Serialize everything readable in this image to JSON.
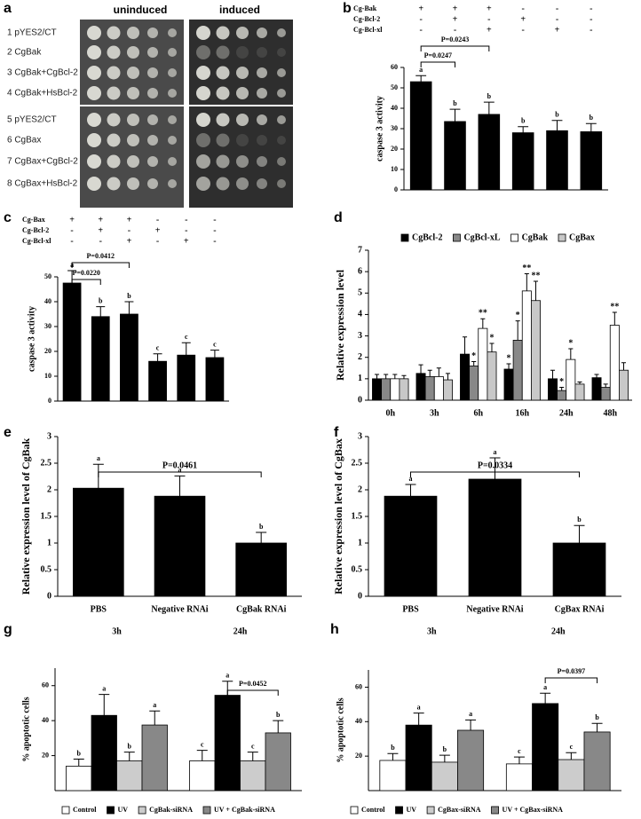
{
  "panel_a": {
    "panel_label": "a",
    "columns": [
      "uninduced",
      "induced"
    ],
    "rows": [
      "1 pYES2/CT",
      "2 CgBak",
      "3 CgBak+CgBcl-2",
      "4 CgBak+HsBcl-2",
      "5 pYES2/CT",
      "6 CgBax",
      "7 CgBax+CgBcl-2",
      "8 CgBax+HsBcl-2"
    ]
  },
  "chart_data": [
    {
      "type": "bar",
      "panel_label": "b",
      "ylabel": "caspase 3 activity",
      "categories": [
        null,
        null,
        null,
        null,
        null,
        null
      ],
      "conditions": [
        {
          "name": "Cg-Bak",
          "signs": [
            "+",
            "+",
            "+",
            "-",
            "-",
            "-"
          ]
        },
        {
          "name": "Cg-Bcl-2",
          "signs": [
            "-",
            "+",
            "-",
            "+",
            "-",
            "-"
          ]
        },
        {
          "name": "Cg-Bcl-xl",
          "signs": [
            "-",
            "-",
            "+",
            "-",
            "+",
            "-"
          ]
        }
      ],
      "series": [
        {
          "color": "#000000",
          "values": [
            53,
            33.5,
            37,
            28,
            29,
            28.5
          ],
          "errors": [
            3,
            6,
            6,
            3,
            5,
            4
          ],
          "letters": [
            "a",
            "b",
            "b",
            "b",
            "b",
            "b"
          ]
        }
      ],
      "brackets": [
        {
          "from": [
            0,
            0
          ],
          "to": [
            1,
            0
          ],
          "label": "P=0.0247"
        },
        {
          "from": [
            0,
            0
          ],
          "to": [
            2,
            0
          ],
          "label": "P=0.0243"
        }
      ],
      "ylim": [
        0,
        60
      ],
      "yticks": [
        0,
        10,
        20,
        30,
        40,
        50,
        60
      ]
    },
    {
      "type": "bar",
      "panel_label": "c",
      "ylabel": "caspase 3 activity",
      "categories": [
        null,
        null,
        null,
        null,
        null,
        null
      ],
      "conditions": [
        {
          "name": "Cg-Bax",
          "signs": [
            "+",
            "+",
            "+",
            "-",
            "-",
            "-"
          ]
        },
        {
          "name": "Cg-Bcl-2",
          "signs": [
            "-",
            "+",
            "-",
            "+",
            "-",
            "-"
          ]
        },
        {
          "name": "Cg-Bcl-xl",
          "signs": [
            "-",
            "-",
            "+",
            "-",
            "+",
            "-"
          ]
        }
      ],
      "series": [
        {
          "color": "#000000",
          "values": [
            47.5,
            34,
            35,
            16,
            18.5,
            17.5
          ],
          "errors": [
            5,
            4,
            5,
            3,
            5,
            3
          ],
          "letters": [
            "a",
            "b",
            "b",
            "c",
            "c",
            "c"
          ]
        }
      ],
      "brackets": [
        {
          "from": [
            0,
            0
          ],
          "to": [
            1,
            0
          ],
          "label": "P=0.0220"
        },
        {
          "from": [
            0,
            0
          ],
          "to": [
            2,
            0
          ],
          "label": "P=0.0412"
        }
      ],
      "ylim": [
        0,
        50
      ],
      "yticks": [
        0,
        10,
        20,
        30,
        40,
        50
      ]
    },
    {
      "type": "bar",
      "panel_label": "d",
      "ylabel": "Relative expression level",
      "categories": [
        "0h",
        "3h",
        "6h",
        "16h",
        "24h",
        "48h"
      ],
      "series": [
        {
          "name": "CgBcl-2",
          "color": "#000000",
          "values": [
            1,
            1.25,
            2.15,
            1.45,
            1.0,
            1.05
          ],
          "errors": [
            0.2,
            0.4,
            0.8,
            0.25,
            0.4,
            0.15
          ],
          "significance": [
            null,
            null,
            null,
            "*",
            null,
            null
          ]
        },
        {
          "name": "CgBcl-xL",
          "color": "#888888",
          "values": [
            1,
            1.1,
            1.6,
            2.8,
            0.45,
            0.6
          ],
          "errors": [
            0.2,
            0.3,
            0.2,
            0.9,
            0.15,
            0.15
          ],
          "significance": [
            null,
            null,
            "*",
            "*",
            "*",
            null
          ]
        },
        {
          "name": "CgBak",
          "color": "#ffffff",
          "values": [
            1,
            1.1,
            3.35,
            5.1,
            1.9,
            3.5
          ],
          "errors": [
            0.2,
            0.4,
            0.45,
            0.8,
            0.5,
            0.6
          ],
          "significance": [
            null,
            null,
            "**",
            "**",
            "*",
            "**"
          ]
        },
        {
          "name": "CgBax",
          "color": "#c8c8c8",
          "values": [
            1,
            0.95,
            2.25,
            4.65,
            0.75,
            1.4
          ],
          "errors": [
            0.15,
            0.3,
            0.4,
            0.9,
            0.1,
            0.35
          ],
          "significance": [
            null,
            null,
            "*",
            "**",
            null,
            null
          ]
        }
      ],
      "ylim": [
        0,
        7
      ],
      "yticks": [
        0,
        1,
        2,
        3,
        4,
        5,
        6,
        7
      ]
    },
    {
      "type": "bar",
      "panel_label": "e",
      "ylabel": "Relative expression level of CgBak",
      "categories": [
        "PBS",
        "Negative RNAi",
        "CgBak RNAi"
      ],
      "series": [
        {
          "color": "#000000",
          "values": [
            2.03,
            1.88,
            1.0
          ],
          "errors": [
            0.45,
            0.38,
            0.2
          ],
          "letters": [
            "a",
            "a",
            "b"
          ]
        }
      ],
      "brackets": [
        {
          "from": [
            0,
            0
          ],
          "to": [
            2,
            0
          ],
          "label": "P=0.0461"
        }
      ],
      "ylim": [
        0,
        3
      ],
      "yticks": [
        0,
        0.5,
        1,
        1.5,
        2,
        2.5,
        3
      ]
    },
    {
      "type": "bar",
      "panel_label": "f",
      "ylabel": "Relative expression level of CgBax",
      "categories": [
        "PBS",
        "Negative RNAi",
        "CgBax RNAi"
      ],
      "series": [
        {
          "color": "#000000",
          "values": [
            1.88,
            2.2,
            1.0
          ],
          "errors": [
            0.22,
            0.4,
            0.33
          ],
          "letters": [
            "a",
            "a",
            "b"
          ]
        }
      ],
      "brackets": [
        {
          "from": [
            0,
            0
          ],
          "to": [
            2,
            0
          ],
          "label": "P=0.0334"
        }
      ],
      "ylim": [
        0,
        3
      ],
      "yticks": [
        0,
        0.5,
        1,
        1.5,
        2,
        2.5,
        3
      ]
    },
    {
      "type": "bar",
      "panel_label": "g",
      "ylabel": "% apoptotic cells",
      "categories": [
        "3h",
        "24h"
      ],
      "series": [
        {
          "name": "Control",
          "color": "#ffffff",
          "values": [
            14,
            17
          ],
          "errors": [
            4,
            6
          ],
          "letters": [
            "b",
            "c"
          ]
        },
        {
          "name": "UV",
          "color": "#000000",
          "values": [
            43,
            54.5
          ],
          "errors": [
            12,
            8
          ],
          "letters": [
            "a",
            "a"
          ]
        },
        {
          "name": "CgBak-siRNA",
          "color": "#cccccc",
          "values": [
            17,
            17
          ],
          "errors": [
            5,
            5
          ],
          "letters": [
            "b",
            "c"
          ]
        },
        {
          "name": "UV + CgBak-siRNA",
          "color": "#888888",
          "values": [
            37.5,
            33
          ],
          "errors": [
            8,
            7
          ],
          "letters": [
            "a",
            "b"
          ]
        }
      ],
      "brackets": [
        {
          "from": [
            1,
            1
          ],
          "to": [
            1,
            3
          ],
          "label": "P=0.0452"
        }
      ],
      "ylim": [
        0,
        70
      ],
      "yticks": [
        20,
        40,
        60
      ]
    },
    {
      "type": "bar",
      "panel_label": "h",
      "ylabel": "% apoptotic cells",
      "categories": [
        "3h",
        "24h"
      ],
      "series": [
        {
          "name": "Control",
          "color": "#ffffff",
          "values": [
            17.5,
            15.5
          ],
          "errors": [
            4,
            4
          ],
          "letters": [
            "b",
            "c"
          ]
        },
        {
          "name": "UV",
          "color": "#000000",
          "values": [
            38,
            50.5
          ],
          "errors": [
            7,
            6
          ],
          "letters": [
            "a",
            "a"
          ]
        },
        {
          "name": "CgBax-siRNA",
          "color": "#cccccc",
          "values": [
            16.5,
            18
          ],
          "errors": [
            4,
            4
          ],
          "letters": [
            "b",
            "c"
          ]
        },
        {
          "name": "UV + CgBax-siRNA",
          "color": "#888888",
          "values": [
            35,
            34
          ],
          "errors": [
            6,
            5
          ],
          "letters": [
            "a",
            "b"
          ]
        }
      ],
      "brackets": [
        {
          "from": [
            1,
            1
          ],
          "to": [
            1,
            3
          ],
          "label": "P=0.0397"
        }
      ],
      "ylim": [
        0,
        70
      ],
      "yticks": [
        20,
        40,
        60
      ]
    }
  ]
}
